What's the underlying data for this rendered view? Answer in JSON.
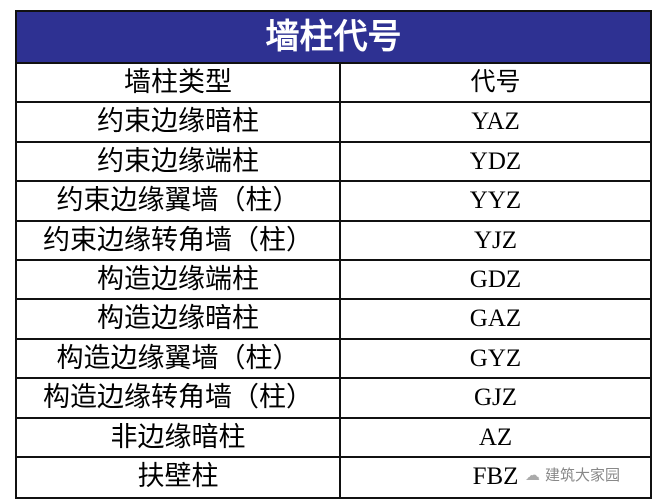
{
  "title": "墙柱代号",
  "header": {
    "type": "墙柱类型",
    "code": "代号"
  },
  "rows": [
    {
      "type": "约束边缘暗柱",
      "code": "YAZ"
    },
    {
      "type": "约束边缘端柱",
      "code": "YDZ"
    },
    {
      "type": "约束边缘翼墙（柱）",
      "code": "YYZ"
    },
    {
      "type": "约束边缘转角墙（柱）",
      "code": "YJZ"
    },
    {
      "type": "构造边缘端柱",
      "code": "GDZ"
    },
    {
      "type": "构造边缘暗柱",
      "code": "GAZ"
    },
    {
      "type": "构造边缘翼墙（柱）",
      "code": "GYZ"
    },
    {
      "type": "构造边缘转角墙（柱）",
      "code": "GJZ"
    },
    {
      "type": "非边缘暗柱",
      "code": "AZ"
    },
    {
      "type": "扶壁柱",
      "code": "FBZ"
    }
  ],
  "watermark": "建筑大家园",
  "colors": {
    "title_bg": "#2e3192"
  }
}
